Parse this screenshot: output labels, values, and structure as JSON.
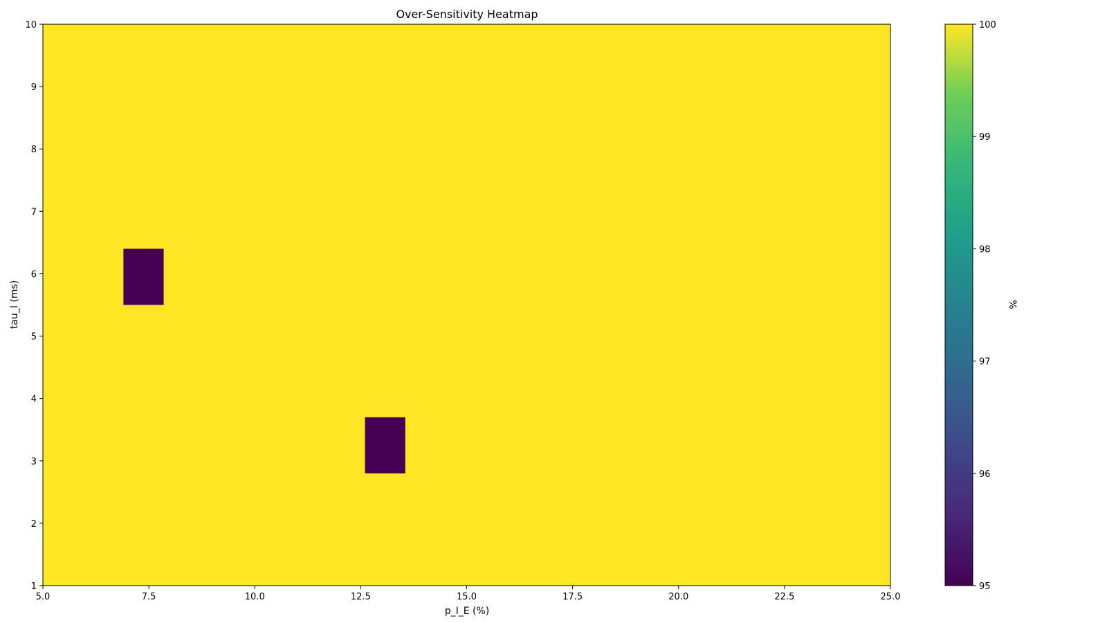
{
  "chart_data": {
    "type": "heatmap",
    "title": "Over-Sensitivity Heatmap",
    "xlabel": "p_I_E (%)",
    "ylabel": "tau_I (ms)",
    "xlim": [
      5.0,
      25.0
    ],
    "ylim": [
      1,
      10
    ],
    "x_ticks": [
      "5.0",
      "7.5",
      "10.0",
      "12.5",
      "15.0",
      "17.5",
      "20.0",
      "22.5",
      "25.0"
    ],
    "y_ticks": [
      "1",
      "2",
      "3",
      "4",
      "5",
      "6",
      "7",
      "8",
      "9",
      "10"
    ],
    "background_value": 100,
    "cells": [
      {
        "x": [
          6.9,
          7.85
        ],
        "y": [
          5.5,
          6.4
        ],
        "value": 95
      },
      {
        "x": [
          12.6,
          13.55
        ],
        "y": [
          2.8,
          3.7
        ],
        "value": 95
      }
    ],
    "colorbar": {
      "label": "%",
      "range": [
        95,
        100
      ],
      "ticks": [
        "95",
        "96",
        "97",
        "98",
        "99",
        "100"
      ],
      "colormap": "viridis",
      "low_color": "#440154",
      "high_color": "#fde725"
    },
    "grid": false,
    "legend": "none"
  }
}
